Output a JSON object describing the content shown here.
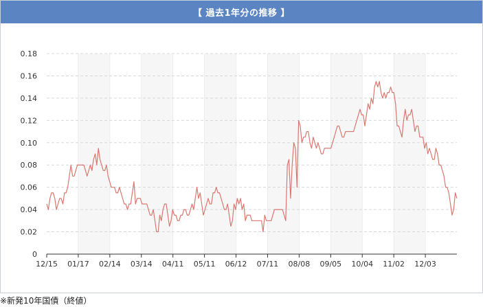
{
  "title": "【 過去1年分の推移 】",
  "footnote": "※新発10年国債（終値）",
  "colors": {
    "header": "#5b84c3",
    "line": "#d9776f",
    "band": "#f6f6f6",
    "grid": "#d8d8d8",
    "axis": "#333333"
  },
  "chart_data": {
    "type": "line",
    "title": "【 過去1年分の推移 】",
    "xlabel": "",
    "ylabel": "",
    "ylim": [
      0,
      0.18
    ],
    "yticks": [
      "0",
      "0.02",
      "0.04",
      "0.06",
      "0.08",
      "0.10",
      "0.12",
      "0.14",
      "0.16",
      "0.18"
    ],
    "xticks": [
      "12/15",
      "01/17",
      "02/14",
      "03/14",
      "04/11",
      "05/11",
      "06/12",
      "07/11",
      "08/08",
      "09/05",
      "10/04",
      "11/02",
      "12/03"
    ],
    "grid": true,
    "legend": "none",
    "series": [
      {
        "name": "",
        "values": [
          0.045,
          0.04,
          0.05,
          0.055,
          0.055,
          0.05,
          0.04,
          0.045,
          0.05,
          0.05,
          0.045,
          0.055,
          0.055,
          0.06,
          0.07,
          0.08,
          0.07,
          0.07,
          0.075,
          0.08,
          0.08,
          0.08,
          0.08,
          0.08,
          0.075,
          0.07,
          0.075,
          0.08,
          0.075,
          0.085,
          0.09,
          0.08,
          0.095,
          0.085,
          0.08,
          0.075,
          0.075,
          0.08,
          0.07,
          0.065,
          0.06,
          0.06,
          0.06,
          0.055,
          0.055,
          0.06,
          0.055,
          0.05,
          0.045,
          0.045,
          0.04,
          0.045,
          0.045,
          0.055,
          0.065,
          0.045,
          0.05,
          0.05,
          0.05,
          0.045,
          0.045,
          0.045,
          0.045,
          0.04,
          0.035,
          0.035,
          0.04,
          0.03,
          0.02,
          0.02,
          0.035,
          0.03,
          0.04,
          0.045,
          0.045,
          0.035,
          0.025,
          0.03,
          0.04,
          0.035,
          0.035,
          0.03,
          0.03,
          0.035,
          0.035,
          0.04,
          0.04,
          0.035,
          0.035,
          0.04,
          0.045,
          0.04,
          0.05,
          0.06,
          0.05,
          0.055,
          0.045,
          0.035,
          0.04,
          0.045,
          0.05,
          0.045,
          0.045,
          0.055,
          0.055,
          0.06,
          0.055,
          0.055,
          0.05,
          0.045,
          0.04,
          0.04,
          0.045,
          0.035,
          0.025,
          0.03,
          0.045,
          0.04,
          0.05,
          0.045,
          0.05,
          0.04,
          0.045,
          0.03,
          0.035,
          0.035,
          0.035,
          0.03,
          0.03,
          0.03,
          0.03,
          0.03,
          0.03,
          0.03,
          0.02,
          0.035,
          0.03,
          0.03,
          0.03,
          0.03,
          0.035,
          0.04,
          0.04,
          0.04,
          0.04,
          0.04,
          0.04,
          0.035,
          0.03,
          0.08,
          0.085,
          0.05,
          0.08,
          0.1,
          0.095,
          0.06,
          0.12,
          0.115,
          0.1,
          0.105,
          0.105,
          0.11,
          0.11,
          0.1,
          0.095,
          0.105,
          0.1,
          0.095,
          0.1,
          0.095,
          0.09,
          0.09,
          0.095,
          0.095,
          0.095,
          0.095,
          0.095,
          0.1,
          0.105,
          0.11,
          0.115,
          0.115,
          0.11,
          0.105,
          0.105,
          0.11,
          0.11,
          0.11,
          0.11,
          0.11,
          0.11,
          0.115,
          0.12,
          0.125,
          0.13,
          0.125,
          0.125,
          0.115,
          0.125,
          0.135,
          0.13,
          0.14,
          0.135,
          0.15,
          0.155,
          0.15,
          0.155,
          0.145,
          0.14,
          0.145,
          0.14,
          0.145,
          0.145,
          0.15,
          0.145,
          0.145,
          0.135,
          0.115,
          0.115,
          0.11,
          0.105,
          0.12,
          0.13,
          0.12,
          0.125,
          0.125,
          0.13,
          0.12,
          0.11,
          0.115,
          0.115,
          0.105,
          0.105,
          0.105,
          0.095,
          0.1,
          0.09,
          0.095,
          0.09,
          0.085,
          0.085,
          0.095,
          0.09,
          0.08,
          0.08,
          0.075,
          0.07,
          0.06,
          0.06,
          0.055,
          0.045,
          0.035,
          0.04,
          0.055,
          0.05
        ]
      }
    ]
  }
}
